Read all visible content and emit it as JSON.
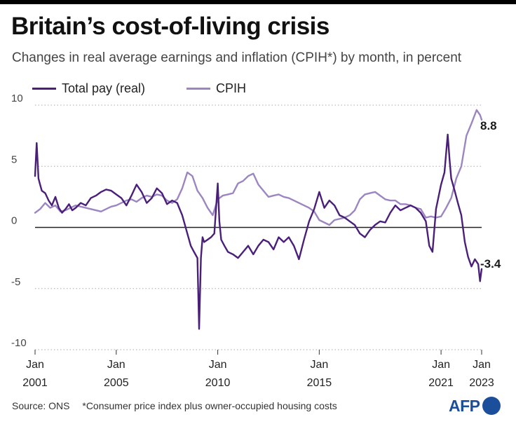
{
  "title": "Britain’s cost-of-living crisis",
  "subtitle": "Changes in real average earnings and inflation (CPIH*) by month, in percent",
  "footer": {
    "source": "Source: ONS",
    "note": "*Consumer price index plus owner-occupied housing costs"
  },
  "logo": {
    "text": "AFP"
  },
  "chart_data": {
    "type": "line",
    "title": "Britain’s cost-of-living crisis",
    "subtitle": "Changes in real average earnings and inflation (CPIH*) by month, in percent",
    "xlabel": "",
    "ylabel": "",
    "xlim": [
      2001.0,
      2023.0
    ],
    "ylim": [
      -10,
      10
    ],
    "yticks": [
      10,
      5,
      0,
      -5,
      -10
    ],
    "ytick_labels": [
      "10",
      "5",
      "0",
      "-5",
      "-10"
    ],
    "xticks": [
      {
        "x": 2001.0,
        "label": [
          "Jan",
          "2001"
        ]
      },
      {
        "x": 2005.0,
        "label": [
          "Jan",
          "2005"
        ]
      },
      {
        "x": 2010.0,
        "label": [
          "Jan",
          "2010"
        ]
      },
      {
        "x": 2015.0,
        "label": [
          "Jan",
          "2015"
        ]
      },
      {
        "x": 2021.0,
        "label": [
          "Jan",
          "2021"
        ]
      },
      {
        "x": 2023.0,
        "label": [
          "Jan",
          "2023"
        ]
      }
    ],
    "grid": "horizontal-dotted",
    "legend_position": "top-left",
    "colors": {
      "total_pay": "#4a1f7a",
      "cpih": "#9c86c2",
      "zero_line": "#222222",
      "grid": "#aaaaaa"
    },
    "end_labels": [
      {
        "series": "CPIH",
        "text": "8.8"
      },
      {
        "series": "Total pay (real)",
        "text": "-3.4"
      }
    ],
    "series": [
      {
        "name": "Total pay (real)",
        "x": [
          2001.0,
          2001.08,
          2001.17,
          2001.25,
          2001.33,
          2001.5,
          2001.67,
          2001.83,
          2002.0,
          2002.17,
          2002.33,
          2002.5,
          2002.67,
          2002.83,
          2003.0,
          2003.25,
          2003.5,
          2003.75,
          2004.0,
          2004.25,
          2004.5,
          2004.75,
          2005.0,
          2005.25,
          2005.5,
          2005.75,
          2006.0,
          2006.25,
          2006.5,
          2006.75,
          2007.0,
          2007.25,
          2007.5,
          2007.75,
          2008.0,
          2008.25,
          2008.5,
          2008.67,
          2008.83,
          2009.0,
          2009.08,
          2009.17,
          2009.25,
          2009.33,
          2009.5,
          2009.67,
          2009.83,
          2010.0,
          2010.08,
          2010.17,
          2010.33,
          2010.5,
          2010.75,
          2011.0,
          2011.25,
          2011.5,
          2011.75,
          2012.0,
          2012.25,
          2012.5,
          2012.75,
          2013.0,
          2013.25,
          2013.5,
          2013.75,
          2014.0,
          2014.25,
          2014.5,
          2014.75,
          2015.0,
          2015.25,
          2015.5,
          2015.75,
          2016.0,
          2016.25,
          2016.5,
          2016.75,
          2017.0,
          2017.25,
          2017.5,
          2017.75,
          2018.0,
          2018.25,
          2018.5,
          2018.75,
          2019.0,
          2019.25,
          2019.5,
          2019.75,
          2020.0,
          2020.25,
          2020.42,
          2020.58,
          2020.75,
          2021.0,
          2021.17,
          2021.33,
          2021.42,
          2021.5,
          2021.67,
          2021.83,
          2022.0,
          2022.17,
          2022.33,
          2022.5,
          2022.67,
          2022.83,
          2022.92,
          2023.0
        ],
        "values": [
          4.2,
          6.9,
          4.0,
          3.5,
          3.0,
          2.8,
          2.2,
          1.8,
          2.5,
          1.6,
          1.2,
          1.5,
          1.9,
          1.4,
          1.6,
          2.0,
          1.8,
          2.4,
          2.6,
          2.9,
          3.1,
          3.0,
          2.7,
          2.4,
          1.8,
          2.6,
          3.5,
          2.9,
          2.0,
          2.4,
          3.2,
          2.8,
          1.9,
          2.2,
          2.0,
          1.0,
          -0.5,
          -1.5,
          -2.0,
          -2.5,
          -8.3,
          -2.5,
          -0.8,
          -1.2,
          -1.0,
          -0.8,
          -0.5,
          3.6,
          0.5,
          -1.0,
          -1.5,
          -2.0,
          -2.2,
          -2.5,
          -2.0,
          -1.5,
          -2.2,
          -1.5,
          -1.0,
          -1.2,
          -1.8,
          -0.8,
          -1.2,
          -0.8,
          -1.5,
          -2.6,
          -1.0,
          0.5,
          1.5,
          2.9,
          1.6,
          2.2,
          1.8,
          1.0,
          0.8,
          0.5,
          0.2,
          -0.5,
          -0.8,
          -0.2,
          0.2,
          0.5,
          0.4,
          1.2,
          1.8,
          1.4,
          1.6,
          1.8,
          1.6,
          1.2,
          0.5,
          -1.5,
          -2.0,
          1.5,
          3.5,
          4.5,
          7.6,
          5.5,
          4.0,
          3.0,
          2.0,
          1.0,
          -1.2,
          -2.4,
          -3.2,
          -2.6,
          -3.0,
          -4.4,
          -3.4
        ]
      },
      {
        "name": "CPIH",
        "x": [
          2001.0,
          2001.25,
          2001.5,
          2001.75,
          2002.0,
          2002.25,
          2002.5,
          2002.75,
          2003.0,
          2003.25,
          2003.5,
          2003.75,
          2004.0,
          2004.25,
          2004.5,
          2004.75,
          2005.0,
          2005.25,
          2005.5,
          2005.75,
          2006.0,
          2006.25,
          2006.5,
          2006.75,
          2007.0,
          2007.25,
          2007.5,
          2007.75,
          2008.0,
          2008.25,
          2008.5,
          2008.75,
          2009.0,
          2009.25,
          2009.5,
          2009.75,
          2010.0,
          2010.25,
          2010.5,
          2010.75,
          2011.0,
          2011.25,
          2011.5,
          2011.75,
          2012.0,
          2012.25,
          2012.5,
          2012.75,
          2013.0,
          2013.25,
          2013.5,
          2013.75,
          2014.0,
          2014.25,
          2014.5,
          2014.75,
          2015.0,
          2015.25,
          2015.5,
          2015.75,
          2016.0,
          2016.25,
          2016.5,
          2016.75,
          2017.0,
          2017.25,
          2017.5,
          2017.75,
          2018.0,
          2018.25,
          2018.5,
          2018.75,
          2019.0,
          2019.25,
          2019.5,
          2019.75,
          2020.0,
          2020.25,
          2020.5,
          2020.75,
          2021.0,
          2021.25,
          2021.5,
          2021.75,
          2022.0,
          2022.25,
          2022.5,
          2022.75,
          2022.92,
          2023.0
        ],
        "values": [
          1.2,
          1.5,
          2.0,
          1.6,
          1.8,
          1.3,
          1.4,
          1.6,
          1.8,
          1.7,
          1.6,
          1.5,
          1.4,
          1.3,
          1.5,
          1.7,
          1.8,
          2.0,
          2.2,
          2.3,
          2.1,
          2.4,
          2.6,
          2.5,
          2.7,
          2.6,
          2.2,
          2.0,
          2.3,
          3.2,
          4.5,
          4.2,
          3.0,
          2.4,
          1.6,
          1.0,
          2.3,
          2.6,
          2.7,
          2.8,
          3.6,
          3.8,
          4.2,
          4.4,
          3.5,
          3.0,
          2.5,
          2.6,
          2.7,
          2.5,
          2.4,
          2.2,
          2.0,
          1.8,
          1.6,
          1.3,
          0.6,
          0.4,
          0.2,
          0.6,
          0.7,
          0.8,
          1.0,
          1.4,
          2.3,
          2.7,
          2.8,
          2.9,
          2.6,
          2.3,
          2.2,
          2.2,
          1.9,
          1.9,
          1.8,
          1.6,
          1.5,
          0.8,
          0.9,
          0.8,
          0.9,
          1.6,
          2.4,
          4.0,
          5.0,
          7.5,
          8.5,
          9.6,
          9.2,
          8.8
        ]
      }
    ]
  }
}
